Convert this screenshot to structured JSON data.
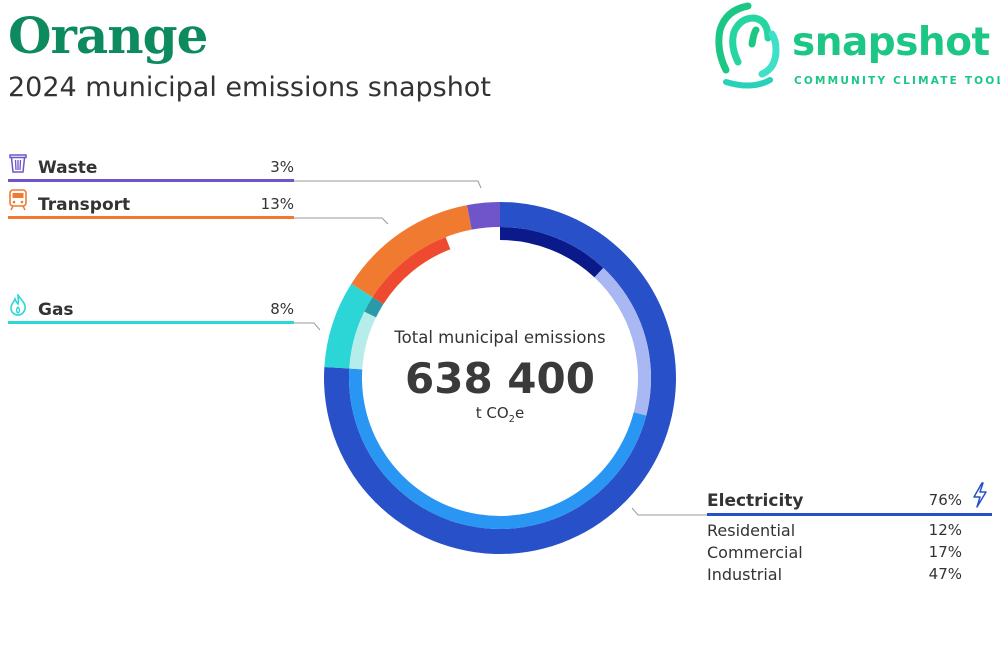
{
  "header": {
    "title": "Orange",
    "subtitle": "2024 municipal emissions snapshot"
  },
  "brand": {
    "name": "snapshot",
    "tagline": "COMMUNITY CLIMATE TOOL",
    "color": "#1cc685"
  },
  "chart_data": {
    "type": "pie",
    "title": "",
    "center": {
      "label": "Total municipal emissions",
      "value": "638 400",
      "unit_prefix": "t CO",
      "unit_sub": "2",
      "unit_suffix": "e"
    },
    "categories": [
      {
        "name": "Electricity",
        "value": 76,
        "pct_label": "76%",
        "icon": "lightning-icon",
        "color": "#2850c8"
      },
      {
        "name": "Gas",
        "value": 8,
        "pct_label": "8%",
        "icon": "flame-icon",
        "color": "#2dd6d6"
      },
      {
        "name": "Transport",
        "value": 13,
        "pct_label": "13%",
        "icon": "train-icon",
        "color": "#f07a30"
      },
      {
        "name": "Waste",
        "value": 3,
        "pct_label": "3%",
        "icon": "trash-icon",
        "color": "#6f55c9"
      }
    ],
    "electricity_breakdown": [
      {
        "name": "Residential",
        "value": 12,
        "pct_label": "12%",
        "color": "#0a1a8a"
      },
      {
        "name": "Commercial",
        "value": 17,
        "pct_label": "17%",
        "color": "#a9b8f2"
      },
      {
        "name": "Industrial",
        "value": 47,
        "pct_label": "47%",
        "color": "#2896f2"
      }
    ],
    "inner_colors": {
      "gas_a": "#b6ecea",
      "gas_b": "#2a9aa8",
      "transport": "#ee4a30"
    }
  }
}
